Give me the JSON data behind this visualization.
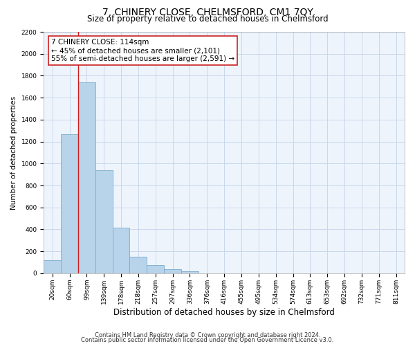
{
  "title": "7, CHINERY CLOSE, CHELMSFORD, CM1 7QY",
  "subtitle": "Size of property relative to detached houses in Chelmsford",
  "xlabel": "Distribution of detached houses by size in Chelmsford",
  "ylabel": "Number of detached properties",
  "categories": [
    "20sqm",
    "60sqm",
    "99sqm",
    "139sqm",
    "178sqm",
    "218sqm",
    "257sqm",
    "297sqm",
    "336sqm",
    "376sqm",
    "416sqm",
    "455sqm",
    "495sqm",
    "534sqm",
    "574sqm",
    "613sqm",
    "653sqm",
    "692sqm",
    "732sqm",
    "771sqm",
    "811sqm"
  ],
  "values": [
    120,
    1265,
    1740,
    940,
    415,
    148,
    75,
    35,
    20,
    0,
    0,
    0,
    0,
    0,
    0,
    0,
    0,
    0,
    0,
    0,
    0
  ],
  "bar_color": "#b8d4ea",
  "bar_edge_color": "#7aabcc",
  "vline_color": "#cc2020",
  "annotation_title": "7 CHINERY CLOSE: 114sqm",
  "annotation_line1": "← 45% of detached houses are smaller (2,101)",
  "annotation_line2": "55% of semi-detached houses are larger (2,591) →",
  "annotation_box_color": "#ffffff",
  "annotation_box_edge": "#cc2020",
  "ylim_max": 2200,
  "yticks": [
    0,
    200,
    400,
    600,
    800,
    1000,
    1200,
    1400,
    1600,
    1800,
    2000,
    2200
  ],
  "grid_color": "#c8d8ec",
  "bg_color": "#eef4fb",
  "footnote1": "Contains HM Land Registry data © Crown copyright and database right 2024.",
  "footnote2": "Contains public sector information licensed under the Open Government Licence v3.0.",
  "title_fontsize": 10,
  "subtitle_fontsize": 8.5,
  "xlabel_fontsize": 8.5,
  "ylabel_fontsize": 7.5,
  "tick_fontsize": 6.5,
  "annot_title_fontsize": 8,
  "annot_body_fontsize": 7.5,
  "footnote_fontsize": 6
}
